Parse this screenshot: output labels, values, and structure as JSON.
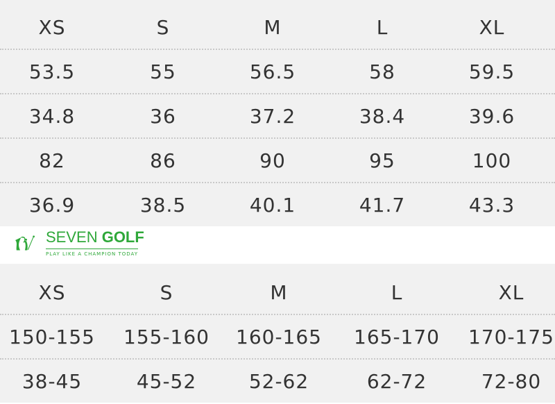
{
  "top_table": {
    "headers": [
      "XS",
      "S",
      "M",
      "L",
      "XL"
    ],
    "rows": [
      [
        "53.5",
        "55",
        "56.5",
        "58",
        "59.5"
      ],
      [
        "34.8",
        "36",
        "37.2",
        "38.4",
        "39.6"
      ],
      [
        "82",
        "86",
        "90",
        "95",
        "100"
      ],
      [
        "36.9",
        "38.5",
        "40.1",
        "41.7",
        "43.3"
      ]
    ]
  },
  "bottom_table": {
    "headers": [
      "XS",
      "S",
      "M",
      "L",
      "XL"
    ],
    "rows": [
      [
        "150-155",
        "155-160",
        "160-165",
        "165-170",
        "170-175"
      ],
      [
        "38-45",
        "45-52",
        "52-62",
        "62-72",
        "72-80"
      ]
    ]
  },
  "logo": {
    "brand_light": "SEVEN ",
    "brand_bold": "GOLF",
    "tagline": "PLAY LIKE A CHAMPION TODAY",
    "color": "#2fa83a"
  }
}
